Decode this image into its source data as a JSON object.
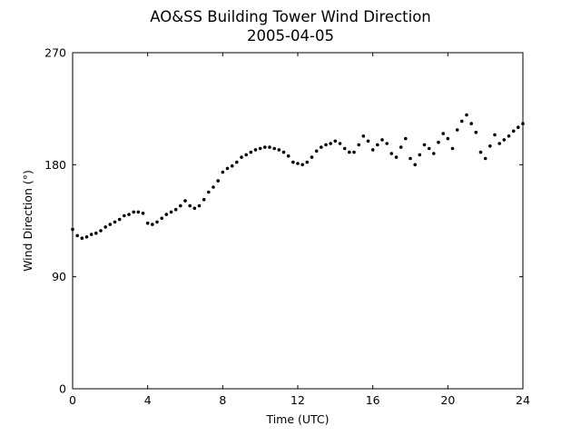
{
  "chart_data": {
    "type": "scatter",
    "title": "AO&SS Building Tower Wind Direction",
    "subtitle": "2005-04-05",
    "xlabel": "Time (UTC)",
    "ylabel": "Wind Direction (°)",
    "xlim": [
      0,
      24
    ],
    "ylim": [
      0,
      270
    ],
    "xticks": [
      0,
      4,
      8,
      12,
      16,
      20,
      24
    ],
    "yticks": [
      0,
      90,
      180,
      270
    ],
    "grid": false,
    "legend": "none",
    "marker_color": "#000000",
    "series": [
      {
        "x": [
          0,
          0.25,
          0.5,
          0.75,
          1,
          1.25,
          1.5,
          1.75,
          2,
          2.25,
          2.5,
          2.75,
          3,
          3.25,
          3.5,
          3.75,
          4,
          4.25,
          4.5,
          4.75,
          5,
          5.25,
          5.5,
          5.75,
          6,
          6.25,
          6.5,
          6.75,
          7,
          7.25,
          7.5,
          7.75,
          8,
          8.25,
          8.5,
          8.75,
          9,
          9.25,
          9.5,
          9.75,
          10,
          10.25,
          10.5,
          10.75,
          11,
          11.25,
          11.5,
          11.75,
          12,
          12.25,
          12.5,
          12.75,
          13,
          13.25,
          13.5,
          13.75,
          14,
          14.25,
          14.5,
          14.75,
          15,
          15.25,
          15.5,
          15.75,
          16,
          16.25,
          16.5,
          16.75,
          17,
          17.25,
          17.5,
          17.75,
          18,
          18.25,
          18.5,
          18.75,
          19,
          19.25,
          19.5,
          19.75,
          20,
          20.25,
          20.5,
          20.75,
          21,
          21.25,
          21.5,
          21.75,
          22,
          22.25,
          22.5,
          22.75,
          23,
          23.25,
          23.5,
          23.75,
          24
        ],
        "y": [
          128,
          123,
          121,
          122,
          124,
          125,
          127,
          130,
          132,
          134,
          136,
          139,
          140,
          142,
          142,
          141,
          133,
          132,
          134,
          137,
          140,
          142,
          144,
          147,
          151,
          147,
          145,
          147,
          152,
          158,
          162,
          167,
          174,
          177,
          179,
          182,
          186,
          188,
          190,
          192,
          193,
          194,
          194,
          193,
          192,
          190,
          187,
          182,
          181,
          180,
          182,
          186,
          191,
          194,
          196,
          197,
          199,
          197,
          193,
          190,
          190,
          196,
          203,
          199,
          192,
          196,
          200,
          197,
          189,
          186,
          194,
          201,
          185,
          180,
          188,
          196,
          193,
          189,
          198,
          205,
          201,
          193,
          208,
          215,
          220,
          213,
          206,
          190,
          185,
          195,
          204,
          197,
          200,
          203,
          207,
          210,
          213
        ]
      }
    ]
  }
}
